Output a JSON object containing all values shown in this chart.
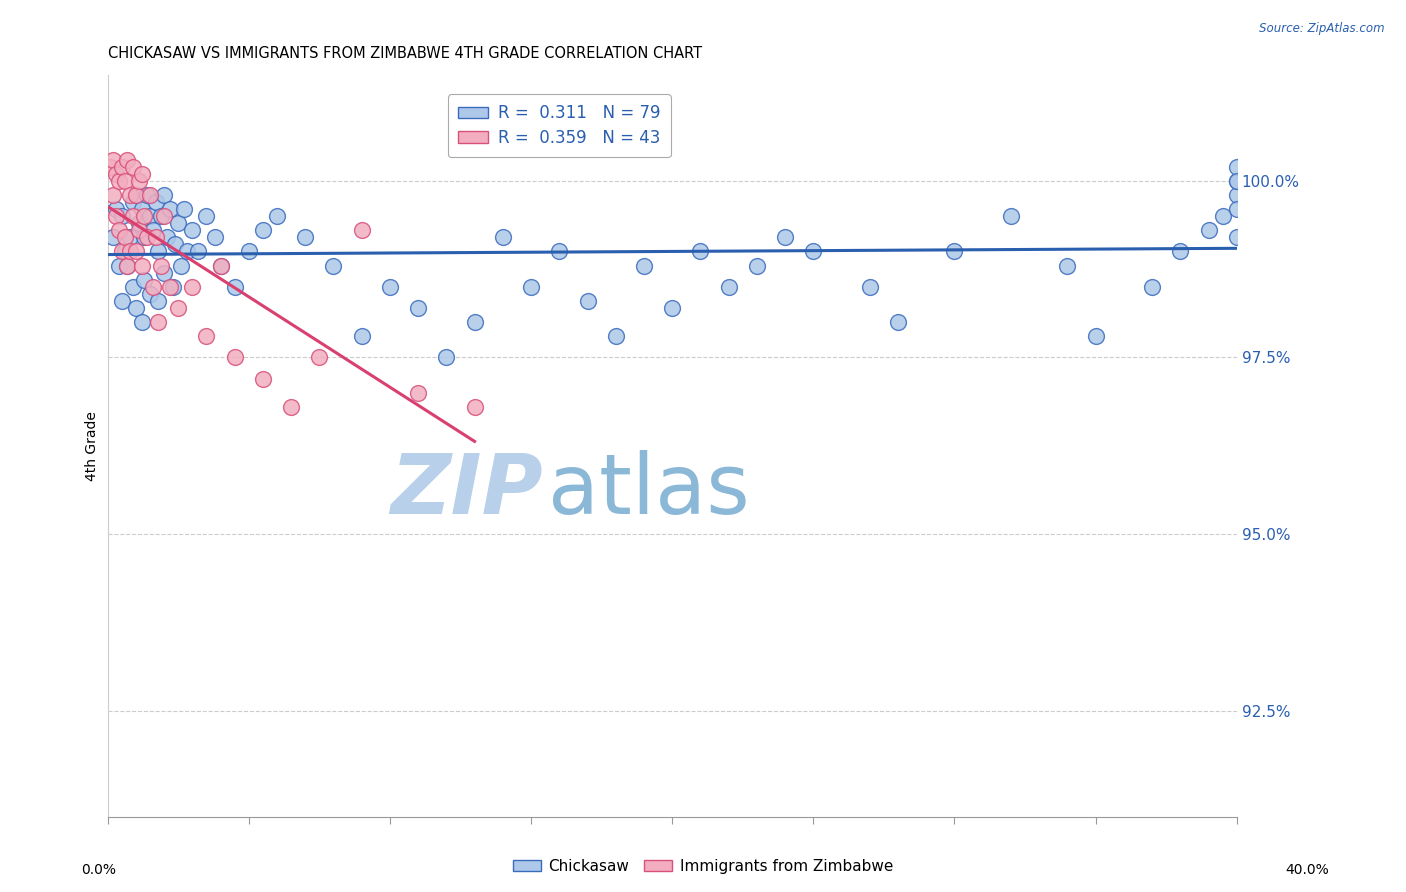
{
  "title": "CHICKASAW VS IMMIGRANTS FROM ZIMBABWE 4TH GRADE CORRELATION CHART",
  "source": "Source: ZipAtlas.com",
  "ylabel": "4th Grade",
  "yticks": [
    92.5,
    95.0,
    97.5,
    100.0
  ],
  "ytick_labels": [
    "92.5%",
    "95.0%",
    "97.5%",
    "100.0%"
  ],
  "xlim": [
    0.0,
    40.0
  ],
  "ylim": [
    91.0,
    101.5
  ],
  "legend1_label": "R =  0.311   N = 79",
  "legend2_label": "R =  0.359   N = 43",
  "legend1_facecolor": "#adc8e8",
  "legend2_facecolor": "#f2aec0",
  "trend1_color": "#2a5faf",
  "trend2_color": "#d94070",
  "dot1_facecolor": "#adc8e8",
  "dot2_facecolor": "#f2aec0",
  "dot1_edgecolor": "#3a6bbf",
  "dot2_edgecolor": "#d9507a",
  "watermark_zip_color": "#c8dff5",
  "watermark_atlas_color": "#9bbfdc",
  "grid_color": "#cccccc",
  "blue_scatter_x": [
    0.2,
    0.3,
    0.4,
    0.5,
    0.5,
    0.6,
    0.7,
    0.8,
    0.9,
    0.9,
    1.0,
    1.0,
    1.1,
    1.2,
    1.2,
    1.3,
    1.3,
    1.4,
    1.5,
    1.5,
    1.6,
    1.7,
    1.8,
    1.8,
    1.9,
    2.0,
    2.0,
    2.1,
    2.2,
    2.3,
    2.4,
    2.5,
    2.6,
    2.7,
    2.8,
    3.0,
    3.2,
    3.5,
    3.8,
    4.0,
    4.5,
    5.0,
    5.5,
    6.0,
    7.0,
    8.0,
    9.0,
    10.0,
    11.0,
    12.0,
    13.0,
    14.0,
    15.0,
    16.0,
    17.0,
    18.0,
    19.0,
    20.0,
    21.0,
    22.0,
    23.0,
    24.0,
    25.0,
    27.0,
    28.0,
    30.0,
    32.0,
    34.0,
    35.0,
    37.0,
    38.0,
    39.0,
    39.5,
    40.0,
    40.0,
    40.0,
    40.0,
    40.0,
    40.0
  ],
  "blue_scatter_y": [
    99.2,
    99.6,
    98.8,
    99.5,
    98.3,
    99.0,
    98.8,
    99.2,
    99.7,
    98.5,
    99.8,
    98.2,
    99.4,
    99.6,
    98.0,
    99.2,
    98.6,
    99.8,
    99.5,
    98.4,
    99.3,
    99.7,
    99.0,
    98.3,
    99.5,
    99.8,
    98.7,
    99.2,
    99.6,
    98.5,
    99.1,
    99.4,
    98.8,
    99.6,
    99.0,
    99.3,
    99.0,
    99.5,
    99.2,
    98.8,
    98.5,
    99.0,
    99.3,
    99.5,
    99.2,
    98.8,
    97.8,
    98.5,
    98.2,
    97.5,
    98.0,
    99.2,
    98.5,
    99.0,
    98.3,
    97.8,
    98.8,
    98.2,
    99.0,
    98.5,
    98.8,
    99.2,
    99.0,
    98.5,
    98.0,
    99.0,
    99.5,
    98.8,
    97.8,
    98.5,
    99.0,
    99.3,
    99.5,
    99.8,
    100.0,
    100.2,
    99.6,
    100.0,
    99.2
  ],
  "pink_scatter_x": [
    0.1,
    0.2,
    0.2,
    0.3,
    0.3,
    0.4,
    0.4,
    0.5,
    0.5,
    0.6,
    0.6,
    0.7,
    0.7,
    0.8,
    0.8,
    0.9,
    0.9,
    1.0,
    1.0,
    1.1,
    1.1,
    1.2,
    1.2,
    1.3,
    1.4,
    1.5,
    1.6,
    1.7,
    1.8,
    1.9,
    2.0,
    2.2,
    2.5,
    3.0,
    3.5,
    4.0,
    4.5,
    5.5,
    6.5,
    7.5,
    9.0,
    11.0,
    13.0
  ],
  "pink_scatter_y": [
    100.2,
    100.3,
    99.8,
    100.1,
    99.5,
    100.0,
    99.3,
    100.2,
    99.0,
    100.0,
    99.2,
    100.3,
    98.8,
    99.8,
    99.0,
    100.2,
    99.5,
    99.8,
    99.0,
    100.0,
    99.3,
    100.1,
    98.8,
    99.5,
    99.2,
    99.8,
    98.5,
    99.2,
    98.0,
    98.8,
    99.5,
    98.5,
    98.2,
    98.5,
    97.8,
    98.8,
    97.5,
    97.2,
    96.8,
    97.5,
    99.3,
    97.0,
    96.8
  ]
}
